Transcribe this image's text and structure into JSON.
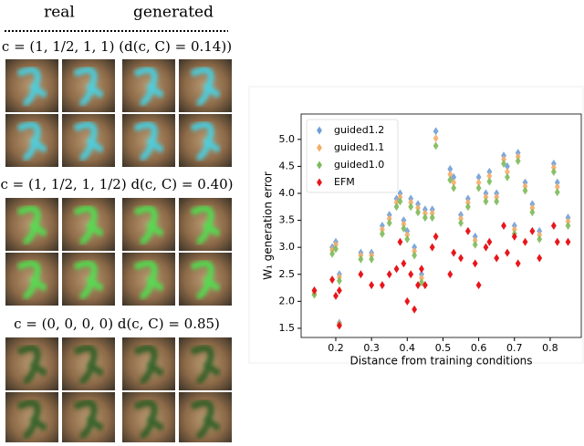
{
  "image_panel": {
    "header": [
      "real",
      "generated"
    ],
    "conditions": [
      "c = (1, 1/2, 1, 1)  (d(c, C) = 0.14))",
      "c = (1, 1/2, 1, 1/2)  d(c, C) = 0.40)",
      "c = (0, 0, 0, 0)  d(c, C) = 0.85)"
    ]
  },
  "chart_data": {
    "type": "scatter",
    "xlabel": "Distance from training conditions",
    "ylabel": "W₁ generation error",
    "x": [
      0.14,
      0.19,
      0.2,
      0.21,
      0.21,
      0.27,
      0.3,
      0.33,
      0.35,
      0.37,
      0.38,
      0.39,
      0.4,
      0.41,
      0.42,
      0.43,
      0.44,
      0.45,
      0.47,
      0.48,
      0.52,
      0.53,
      0.55,
      0.57,
      0.59,
      0.6,
      0.62,
      0.63,
      0.65,
      0.67,
      0.68,
      0.7,
      0.71,
      0.73,
      0.75,
      0.77,
      0.81,
      0.82,
      0.85
    ],
    "series": [
      {
        "name": "guided1.2",
        "color": "#6f9fd8",
        "values": [
          2.2,
          3.0,
          3.1,
          1.6,
          2.5,
          2.9,
          2.9,
          3.4,
          3.6,
          3.9,
          4.0,
          3.5,
          3.3,
          3.9,
          3.0,
          3.8,
          2.5,
          3.7,
          3.7,
          5.15,
          4.45,
          4.3,
          3.6,
          3.9,
          3.2,
          4.3,
          4.0,
          4.4,
          4.0,
          4.7,
          4.5,
          3.4,
          4.75,
          4.2,
          3.8,
          3.3,
          4.55,
          4.2,
          3.55
        ]
      },
      {
        "name": "guided1.1",
        "color": "#f5ad68",
        "values": [
          2.15,
          2.95,
          3.05,
          1.58,
          2.45,
          2.85,
          2.85,
          3.33,
          3.53,
          3.83,
          3.93,
          3.43,
          3.23,
          3.83,
          2.93,
          3.73,
          2.43,
          3.63,
          3.63,
          5.02,
          4.35,
          4.2,
          3.53,
          3.83,
          3.13,
          4.2,
          3.93,
          4.32,
          3.93,
          4.63,
          4.4,
          3.33,
          4.68,
          4.13,
          3.73,
          3.23,
          4.48,
          4.12,
          3.48
        ]
      },
      {
        "name": "guided1.0",
        "color": "#7cba5a",
        "values": [
          2.12,
          2.88,
          2.97,
          1.56,
          2.38,
          2.78,
          2.78,
          3.25,
          3.45,
          3.75,
          3.85,
          3.35,
          3.15,
          3.75,
          2.85,
          3.65,
          2.35,
          3.55,
          3.55,
          4.88,
          4.25,
          4.1,
          3.45,
          3.75,
          3.05,
          4.1,
          3.85,
          4.22,
          3.85,
          4.55,
          4.3,
          3.25,
          4.6,
          4.05,
          3.65,
          3.15,
          4.4,
          4.02,
          3.4
        ]
      },
      {
        "name": "EFM",
        "color": "#e8161b",
        "values": [
          2.2,
          2.4,
          2.1,
          1.55,
          2.2,
          2.5,
          2.3,
          2.3,
          2.5,
          2.6,
          3.1,
          2.7,
          2.0,
          2.5,
          1.85,
          2.3,
          2.6,
          2.3,
          3.0,
          3.2,
          2.5,
          2.9,
          2.8,
          3.3,
          2.7,
          2.3,
          3.0,
          3.1,
          2.8,
          3.4,
          2.9,
          3.2,
          2.7,
          3.1,
          3.3,
          2.8,
          3.4,
          3.1,
          3.1
        ]
      }
    ],
    "xlim": [
      0.103,
      0.887
    ],
    "xticks": [
      0.2,
      0.3,
      0.4,
      0.5,
      0.6,
      0.7,
      0.8
    ],
    "ylim": [
      1.33,
      5.47
    ],
    "yticks": [
      1.5,
      {
        "value": 2,
        "label": "2.0"
      },
      2.5,
      {
        "value": 3,
        "label": "3.0"
      },
      3.5,
      {
        "value": 4,
        "label": "4.0"
      },
      4.5,
      {
        "value": 5,
        "label": "5.0"
      }
    ],
    "legend": "upper left",
    "marker": "diamond"
  }
}
